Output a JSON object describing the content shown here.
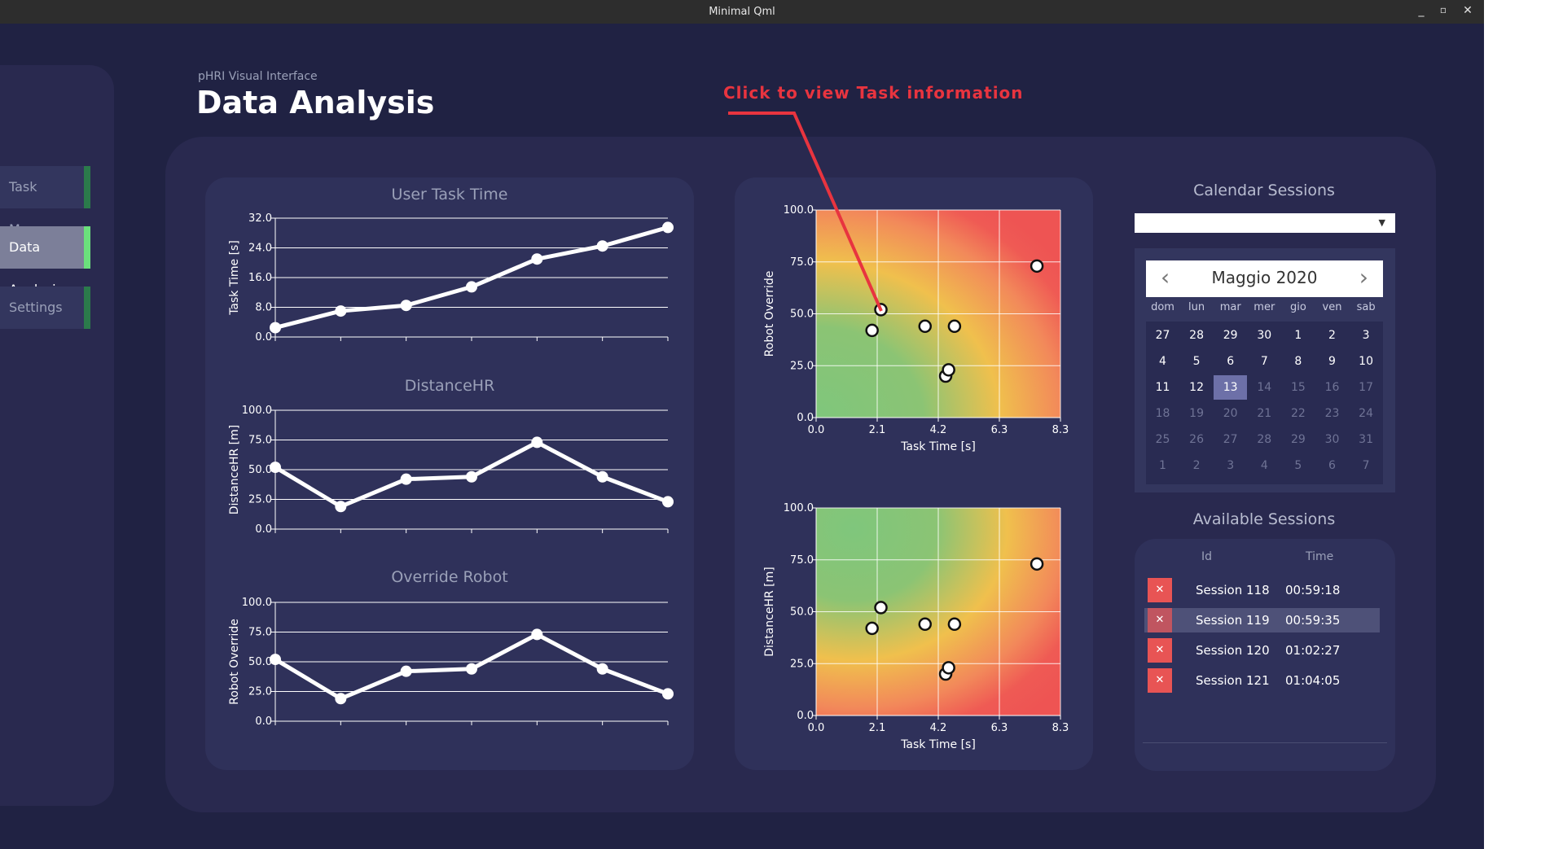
{
  "window": {
    "title": "Minimal Qml",
    "controls": {
      "minimize": "_",
      "restore": "▫",
      "close": "✕"
    }
  },
  "sidebar": {
    "items": [
      {
        "label": "Task Manager",
        "active": false
      },
      {
        "label": "Data Analysis",
        "active": true
      },
      {
        "label": "Settings",
        "active": false
      }
    ]
  },
  "header": {
    "subtitle": "pHRI Visual Interface",
    "title": "Data Analysis"
  },
  "annotation": {
    "text": "Click to view Task information",
    "color": "#e8343f"
  },
  "chart_data": [
    {
      "type": "line",
      "title": "User Task Time",
      "ylabel": "Task Time [s]",
      "ylim": [
        0,
        32
      ],
      "yticks": [
        "0.0",
        "8.0",
        "16.0",
        "24.0",
        "32.0"
      ],
      "x": [
        1,
        2,
        3,
        4,
        5,
        6,
        7
      ],
      "values": [
        2.5,
        7,
        8.5,
        13.5,
        21,
        24.5,
        29.5
      ]
    },
    {
      "type": "line",
      "title": "DistanceHR",
      "ylabel": "DistanceHR [m]",
      "ylim": [
        0,
        100
      ],
      "yticks": [
        "0.0",
        "25.0",
        "50.0",
        "75.0",
        "100.0"
      ],
      "x": [
        1,
        2,
        3,
        4,
        5,
        6,
        7
      ],
      "values": [
        52,
        19,
        42,
        44,
        73,
        44,
        23
      ]
    },
    {
      "type": "line",
      "title": "Override Robot",
      "ylabel": "Robot Override",
      "ylim": [
        0,
        100
      ],
      "yticks": [
        "0.0",
        "25.0",
        "50.0",
        "75.0",
        "100.0"
      ],
      "x": [
        1,
        2,
        3,
        4,
        5,
        6,
        7
      ],
      "values": [
        52,
        19,
        42,
        44,
        73,
        44,
        23
      ]
    },
    {
      "type": "scatter",
      "xlabel": "Task Time [s]",
      "ylabel": "Robot Override",
      "xlim": [
        0,
        8.3
      ],
      "ylim": [
        0,
        100
      ],
      "xticks": [
        "0.0",
        "2.1",
        "4.2",
        "6.3",
        "8.3"
      ],
      "yticks": [
        "0.0",
        "25.0",
        "50.0",
        "75.0",
        "100.0"
      ],
      "background": "heatmap",
      "gradient_focus": "bottom-left",
      "points": [
        {
          "x": 2.2,
          "y": 52
        },
        {
          "x": 1.9,
          "y": 42
        },
        {
          "x": 3.7,
          "y": 44
        },
        {
          "x": 4.7,
          "y": 44
        },
        {
          "x": 4.4,
          "y": 20
        },
        {
          "x": 4.5,
          "y": 23
        },
        {
          "x": 7.5,
          "y": 73
        }
      ]
    },
    {
      "type": "scatter",
      "xlabel": "Task Time [s]",
      "ylabel": "DistanceHR [m]",
      "xlim": [
        0,
        8.3
      ],
      "ylim": [
        0,
        100
      ],
      "xticks": [
        "0.0",
        "2.1",
        "4.2",
        "6.3",
        "8.3"
      ],
      "yticks": [
        "0.0",
        "25.0",
        "50.0",
        "75.0",
        "100.0"
      ],
      "background": "heatmap",
      "gradient_focus": "top-left",
      "points": [
        {
          "x": 2.2,
          "y": 52
        },
        {
          "x": 1.9,
          "y": 42
        },
        {
          "x": 3.7,
          "y": 44
        },
        {
          "x": 4.7,
          "y": 44
        },
        {
          "x": 4.4,
          "y": 20
        },
        {
          "x": 4.5,
          "y": 23
        },
        {
          "x": 7.5,
          "y": 73
        }
      ]
    }
  ],
  "calendar": {
    "title": "Calendar Sessions",
    "combo_value": "",
    "month_label": "Maggio 2020",
    "prev": "‹",
    "next": "›",
    "weekdays": [
      "dom",
      "lun",
      "mar",
      "mer",
      "gio",
      "ven",
      "sab"
    ],
    "weeks": [
      [
        "27",
        "28",
        "29",
        "30",
        "1",
        "2",
        "3"
      ],
      [
        "4",
        "5",
        "6",
        "7",
        "8",
        "9",
        "10"
      ],
      [
        "11",
        "12",
        "13",
        "14",
        "15",
        "16",
        "17"
      ],
      [
        "18",
        "19",
        "20",
        "21",
        "22",
        "23",
        "24"
      ],
      [
        "25",
        "26",
        "27",
        "28",
        "29",
        "30",
        "31"
      ],
      [
        "1",
        "2",
        "3",
        "4",
        "5",
        "6",
        "7"
      ]
    ],
    "selected_day": "13",
    "colors": {
      "selected": "#6d70a8",
      "bright_text": "#ffffff",
      "dim_text": "#6f7395"
    }
  },
  "sessions": {
    "title": "Available Sessions",
    "columns": [
      "Id",
      "Time"
    ],
    "delete_icon": "✕",
    "rows": [
      {
        "name": "Session 118",
        "time": "00:59:18",
        "selected": false
      },
      {
        "name": "Session 119",
        "time": "00:59:35",
        "selected": true
      },
      {
        "name": "Session 120",
        "time": "01:02:27",
        "selected": false
      },
      {
        "name": "Session 121",
        "time": "01:04:05",
        "selected": false
      }
    ]
  }
}
